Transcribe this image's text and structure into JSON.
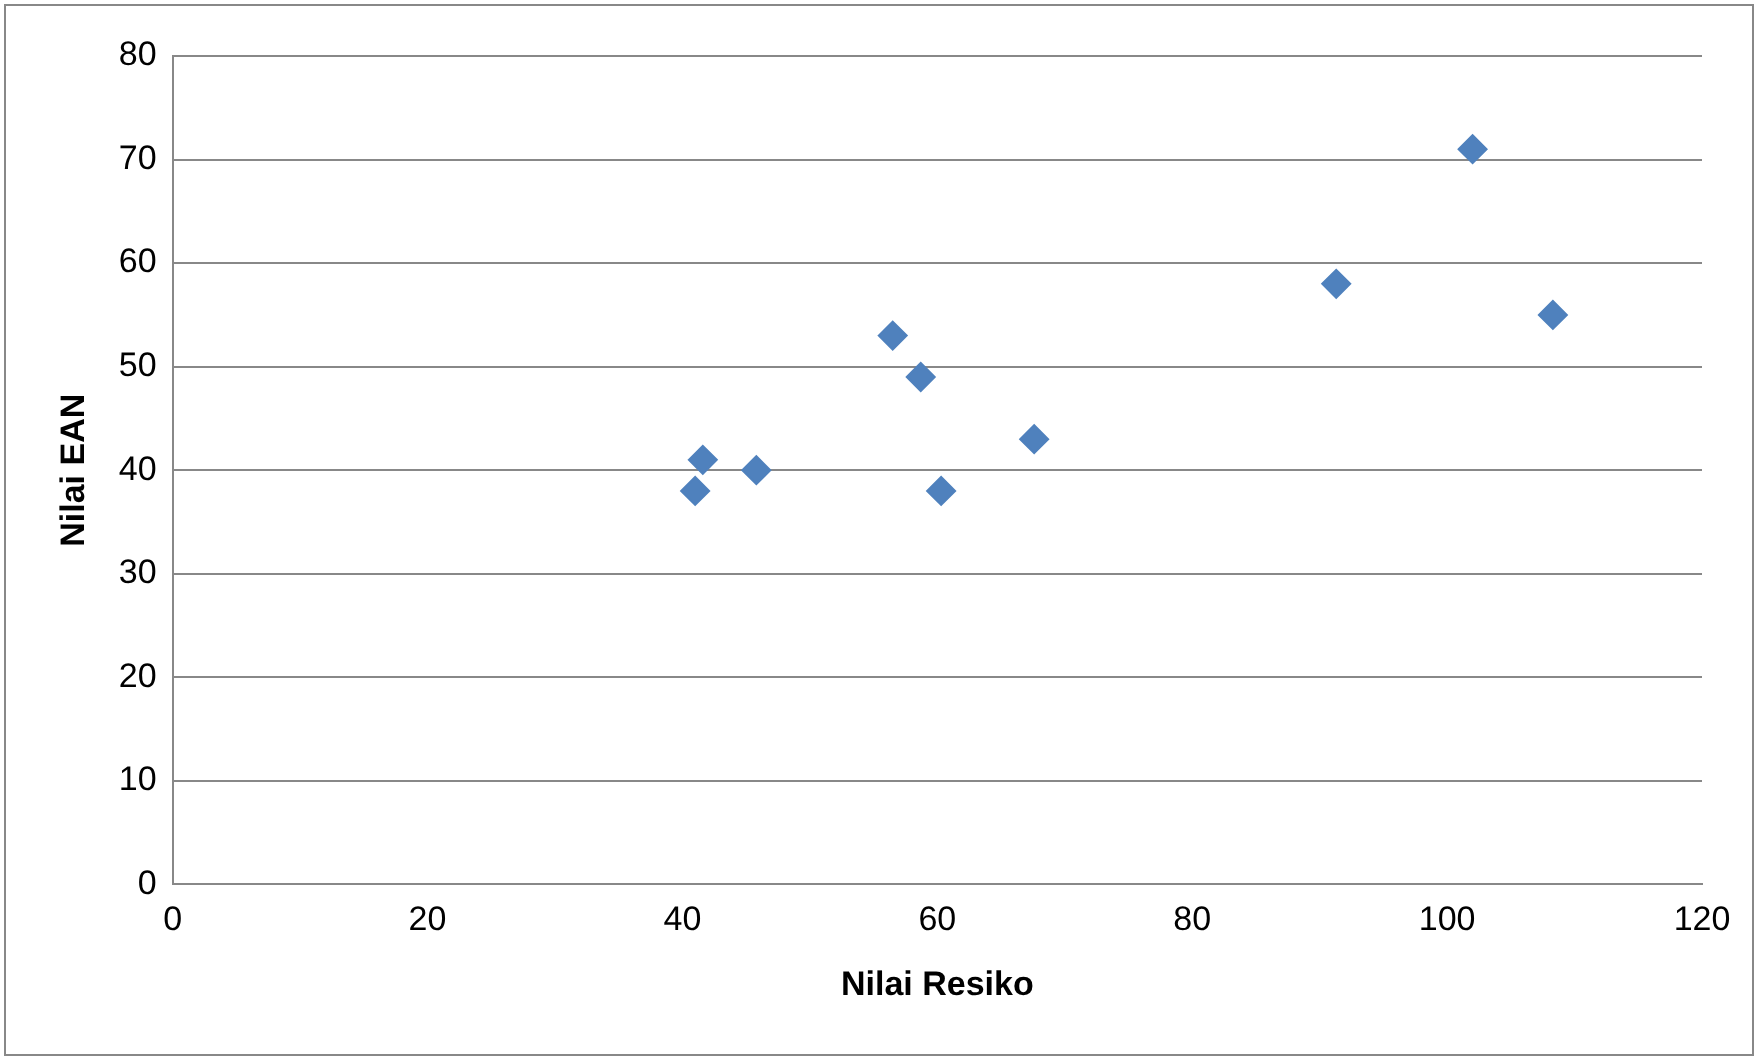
{
  "chart_data": {
    "type": "scatter",
    "xlabel": "Nilai Resiko",
    "ylabel": "Nilai EAN",
    "x": [
      41,
      41.6,
      45.8,
      56.5,
      58.7,
      60.3,
      67.6,
      91.3,
      102,
      108.3
    ],
    "series": [
      {
        "color": "#4f81bd",
        "values": [
          38,
          41,
          40,
          53,
          49,
          38,
          43,
          58,
          71,
          55
        ]
      }
    ],
    "xlim": [
      0,
      120
    ],
    "xticks": [
      0,
      20,
      40,
      60,
      80,
      100,
      120
    ],
    "ylim": [
      0,
      80
    ],
    "yticks": [
      0,
      10,
      20,
      30,
      40,
      50,
      60,
      70,
      80
    ],
    "grid": "y",
    "legend": false,
    "marker": "diamond"
  }
}
